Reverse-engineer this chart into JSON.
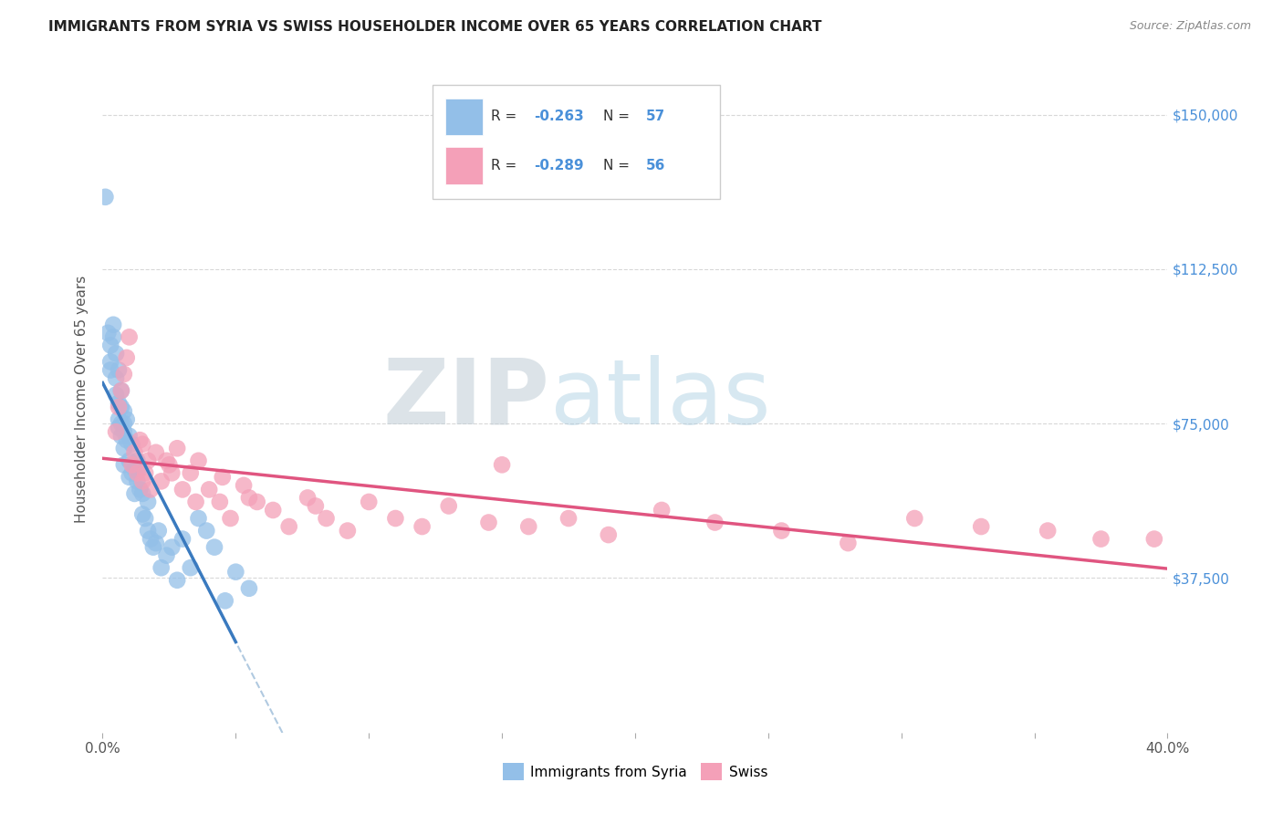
{
  "title": "IMMIGRANTS FROM SYRIA VS SWISS HOUSEHOLDER INCOME OVER 65 YEARS CORRELATION CHART",
  "source": "Source: ZipAtlas.com",
  "ylabel": "Householder Income Over 65 years",
  "ytick_labels": [
    "$37,500",
    "$75,000",
    "$112,500",
    "$150,000"
  ],
  "ytick_values": [
    37500,
    75000,
    112500,
    150000
  ],
  "ylim": [
    0,
    162000
  ],
  "xlim": [
    0.0,
    0.4
  ],
  "syria_color": "#93bfe8",
  "swiss_color": "#f4a0b8",
  "syria_trend_color": "#3a7abf",
  "swiss_trend_color": "#e05580",
  "dashed_trend_color": "#a8c4dd",
  "watermark_color": "#ccdde8",
  "background_color": "#ffffff",
  "grid_color": "#d8d8d8",
  "syria_x": [
    0.001,
    0.002,
    0.003,
    0.003,
    0.004,
    0.004,
    0.005,
    0.005,
    0.006,
    0.006,
    0.006,
    0.007,
    0.007,
    0.007,
    0.007,
    0.008,
    0.008,
    0.008,
    0.008,
    0.009,
    0.009,
    0.01,
    0.01,
    0.01,
    0.011,
    0.011,
    0.012,
    0.012,
    0.013,
    0.013,
    0.014,
    0.014,
    0.015,
    0.015,
    0.016,
    0.017,
    0.017,
    0.018,
    0.019,
    0.02,
    0.021,
    0.022,
    0.024,
    0.026,
    0.028,
    0.03,
    0.033,
    0.036,
    0.039,
    0.042,
    0.046,
    0.05,
    0.055,
    0.003,
    0.005,
    0.006,
    0.008
  ],
  "syria_y": [
    130000,
    97000,
    94000,
    90000,
    99000,
    96000,
    86000,
    82000,
    80000,
    76000,
    74000,
    83000,
    79000,
    75000,
    72000,
    78000,
    73000,
    69000,
    65000,
    76000,
    71000,
    72000,
    66000,
    62000,
    70000,
    63000,
    64000,
    58000,
    66000,
    61000,
    64000,
    59000,
    58000,
    53000,
    52000,
    56000,
    49000,
    47000,
    45000,
    46000,
    49000,
    40000,
    43000,
    45000,
    37000,
    47000,
    40000,
    52000,
    49000,
    45000,
    32000,
    39000,
    35000,
    88000,
    92000,
    88000,
    75000
  ],
  "swiss_x": [
    0.005,
    0.006,
    0.007,
    0.008,
    0.009,
    0.01,
    0.011,
    0.012,
    0.013,
    0.014,
    0.015,
    0.016,
    0.017,
    0.018,
    0.02,
    0.022,
    0.024,
    0.026,
    0.028,
    0.03,
    0.033,
    0.036,
    0.04,
    0.044,
    0.048,
    0.053,
    0.058,
    0.064,
    0.07,
    0.077,
    0.084,
    0.092,
    0.1,
    0.11,
    0.12,
    0.13,
    0.145,
    0.16,
    0.175,
    0.19,
    0.21,
    0.23,
    0.255,
    0.28,
    0.305,
    0.33,
    0.355,
    0.375,
    0.395,
    0.015,
    0.025,
    0.035,
    0.045,
    0.055,
    0.08,
    0.15
  ],
  "swiss_y": [
    73000,
    79000,
    83000,
    87000,
    91000,
    96000,
    65000,
    68000,
    63000,
    71000,
    61000,
    63000,
    66000,
    59000,
    68000,
    61000,
    66000,
    63000,
    69000,
    59000,
    63000,
    66000,
    59000,
    56000,
    52000,
    60000,
    56000,
    54000,
    50000,
    57000,
    52000,
    49000,
    56000,
    52000,
    50000,
    55000,
    51000,
    50000,
    52000,
    48000,
    54000,
    51000,
    49000,
    46000,
    52000,
    50000,
    49000,
    47000,
    47000,
    70000,
    65000,
    56000,
    62000,
    57000,
    55000,
    65000
  ]
}
